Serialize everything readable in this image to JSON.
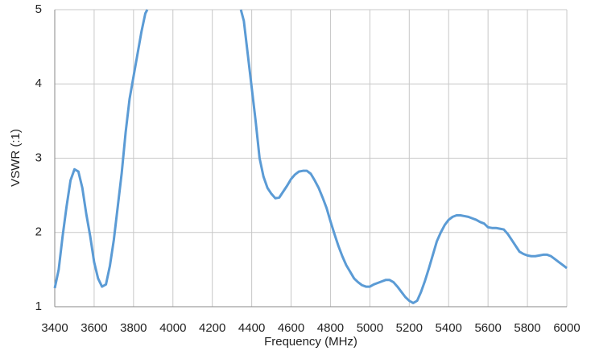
{
  "chart_data": {
    "type": "line",
    "x_label": "Frequency (MHz)",
    "y_label": "VSWR (:1)",
    "xlim": [
      3400,
      6000
    ],
    "xticks": [
      3400,
      3600,
      3800,
      4000,
      4200,
      4400,
      4600,
      4800,
      5000,
      5200,
      5400,
      5600,
      5800,
      6000
    ],
    "ylim": [
      1,
      5
    ],
    "yticks": [
      1,
      2,
      3,
      4,
      5
    ],
    "grid": true,
    "series": [
      {
        "color": "#5b9bd5",
        "x": [
          3400,
          3420,
          3440,
          3460,
          3480,
          3500,
          3520,
          3540,
          3560,
          3580,
          3600,
          3620,
          3640,
          3660,
          3680,
          3700,
          3720,
          3740,
          3760,
          3780,
          3800,
          3820,
          3840,
          3860,
          3870,
          4100,
          4345,
          4360,
          4380,
          4400,
          4420,
          4440,
          4460,
          4480,
          4500,
          4520,
          4540,
          4560,
          4580,
          4600,
          4620,
          4640,
          4660,
          4680,
          4700,
          4720,
          4740,
          4760,
          4780,
          4800,
          4820,
          4840,
          4860,
          4880,
          4900,
          4920,
          4940,
          4960,
          4980,
          5000,
          5020,
          5040,
          5060,
          5080,
          5100,
          5120,
          5140,
          5160,
          5180,
          5200,
          5220,
          5240,
          5260,
          5280,
          5300,
          5320,
          5340,
          5360,
          5380,
          5400,
          5420,
          5440,
          5460,
          5480,
          5500,
          5520,
          5540,
          5560,
          5580,
          5600,
          5620,
          5640,
          5660,
          5680,
          5700,
          5720,
          5740,
          5760,
          5780,
          5800,
          5820,
          5840,
          5860,
          5880,
          5900,
          5920,
          5940,
          5960,
          5980,
          6000
        ],
        "values": [
          1.25,
          1.5,
          1.95,
          2.35,
          2.7,
          2.85,
          2.82,
          2.6,
          2.25,
          1.95,
          1.6,
          1.38,
          1.27,
          1.3,
          1.55,
          1.9,
          2.35,
          2.8,
          3.35,
          3.8,
          4.1,
          4.4,
          4.7,
          4.95,
          5.0,
          null,
          5.0,
          4.85,
          4.4,
          3.95,
          3.5,
          3.0,
          2.75,
          2.6,
          2.52,
          2.46,
          2.47,
          2.55,
          2.63,
          2.72,
          2.78,
          2.82,
          2.83,
          2.83,
          2.79,
          2.7,
          2.6,
          2.47,
          2.33,
          2.15,
          1.98,
          1.82,
          1.68,
          1.56,
          1.47,
          1.38,
          1.33,
          1.29,
          1.27,
          1.27,
          1.3,
          1.32,
          1.34,
          1.36,
          1.36,
          1.33,
          1.27,
          1.2,
          1.13,
          1.08,
          1.05,
          1.08,
          1.2,
          1.35,
          1.52,
          1.7,
          1.88,
          2.0,
          2.1,
          2.17,
          2.21,
          2.23,
          2.23,
          2.22,
          2.21,
          2.19,
          2.17,
          2.14,
          2.12,
          2.07,
          2.06,
          2.06,
          2.05,
          2.04,
          1.98,
          1.9,
          1.82,
          1.74,
          1.71,
          1.69,
          1.68,
          1.68,
          1.69,
          1.7,
          1.7,
          1.68,
          1.64,
          1.6,
          1.56,
          1.52
        ]
      }
    ]
  }
}
